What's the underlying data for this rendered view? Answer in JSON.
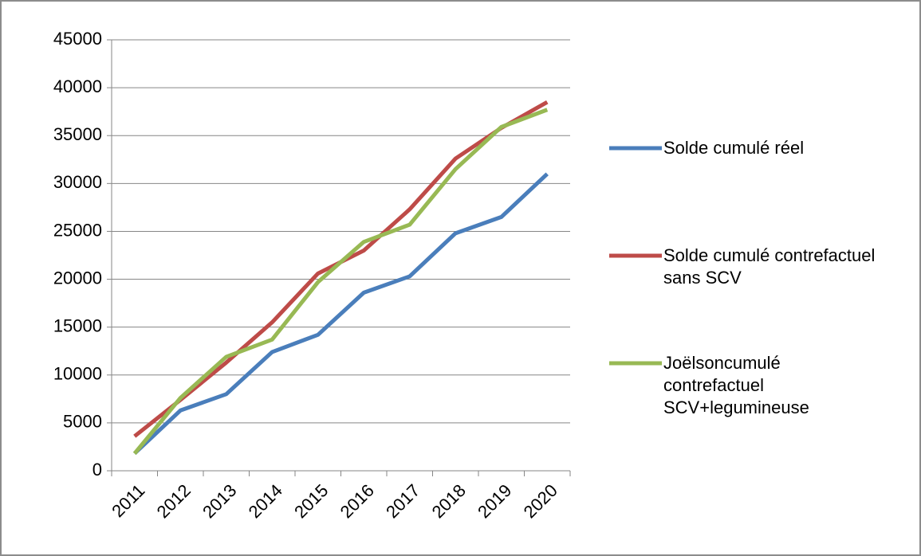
{
  "chart_data": {
    "type": "line",
    "categories": [
      "2011",
      "2012",
      "2013",
      "2014",
      "2015",
      "2016",
      "2017",
      "2018",
      "2019",
      "2020"
    ],
    "series": [
      {
        "name": "Solde cumulé réel",
        "color": "#4a7ebb",
        "values": [
          1800,
          6300,
          8000,
          12400,
          14200,
          18600,
          20300,
          24800,
          26500,
          31000
        ]
      },
      {
        "name": "Solde cumulé contrefactuel sans SCV",
        "color": "#be4b48",
        "values": [
          3600,
          7400,
          11300,
          15500,
          20600,
          23000,
          27300,
          32600,
          35800,
          38500
        ]
      },
      {
        "name": "Joëlsoncumulé contrefactuel SCV+legumineuse",
        "color": "#98b954",
        "values": [
          1800,
          7600,
          11900,
          13700,
          19700,
          23900,
          25700,
          31500,
          35900,
          37700
        ]
      }
    ],
    "ylim": [
      0,
      45000
    ],
    "yticks": [
      0,
      5000,
      10000,
      15000,
      20000,
      25000,
      30000,
      35000,
      40000,
      45000
    ],
    "grid": true,
    "legend": "right"
  }
}
